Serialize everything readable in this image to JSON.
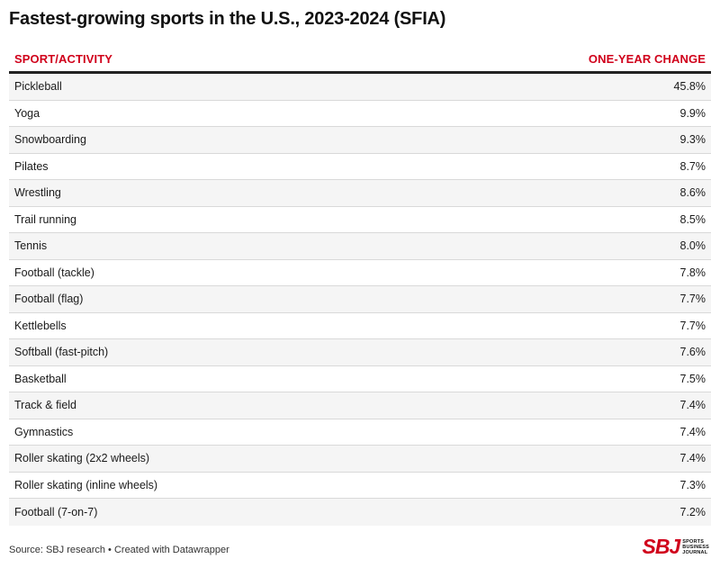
{
  "title": "Fastest-growing sports in the U.S., 2023-2024 (SFIA)",
  "chart_data": {
    "type": "table",
    "columns": [
      "SPORT/ACTIVITY",
      "ONE-YEAR CHANGE"
    ],
    "rows": [
      {
        "sport": "Pickleball",
        "change": "45.8%"
      },
      {
        "sport": "Yoga",
        "change": "9.9%"
      },
      {
        "sport": "Snowboarding",
        "change": "9.3%"
      },
      {
        "sport": "Pilates",
        "change": "8.7%"
      },
      {
        "sport": "Wrestling",
        "change": "8.6%"
      },
      {
        "sport": "Trail running",
        "change": "8.5%"
      },
      {
        "sport": "Tennis",
        "change": "8.0%"
      },
      {
        "sport": "Football (tackle)",
        "change": "7.8%"
      },
      {
        "sport": "Football (flag)",
        "change": "7.7%"
      },
      {
        "sport": "Kettlebells",
        "change": "7.7%"
      },
      {
        "sport": "Softball (fast-pitch)",
        "change": "7.6%"
      },
      {
        "sport": "Basketball",
        "change": "7.5%"
      },
      {
        "sport": "Track & field",
        "change": "7.4%"
      },
      {
        "sport": "Gymnastics",
        "change": "7.4%"
      },
      {
        "sport": "Roller skating (2x2 wheels)",
        "change": "7.4%"
      },
      {
        "sport": "Roller skating (inline wheels)",
        "change": "7.3%"
      },
      {
        "sport": "Football (7-on-7)",
        "change": "7.2%"
      }
    ]
  },
  "footer": "Source: SBJ research • Created with Datawrapper",
  "logo": {
    "mark": "SBJ",
    "lines": [
      "SPORTS",
      "BUSINESS",
      "JOURNAL"
    ]
  },
  "colors": {
    "header_text": "#d0011b",
    "logo": "#d0011b"
  }
}
